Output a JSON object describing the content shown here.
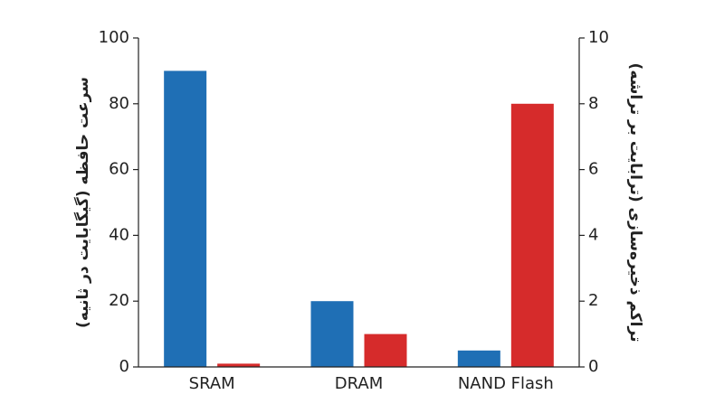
{
  "chart_data": {
    "type": "bar",
    "categories": [
      "SRAM",
      "DRAM",
      "NAND Flash"
    ],
    "ylabel": "سرعت حافظه (گیگابایت در ثانیه)",
    "y2label": "تراکم ذخیره‌سازی (ترابایت بر تراشه)",
    "ylim": [
      0,
      100
    ],
    "yticks": [
      0,
      20,
      40,
      60,
      80,
      100
    ],
    "y2lim": [
      0,
      10
    ],
    "y2ticks": [
      0,
      2,
      4,
      6,
      8,
      10
    ],
    "series": [
      {
        "color": "#1f6fb5",
        "values": [
          90,
          20,
          5
        ]
      },
      {
        "color": "#d62b2b",
        "axis": "y2",
        "values": [
          0.1,
          1,
          8
        ]
      }
    ]
  }
}
